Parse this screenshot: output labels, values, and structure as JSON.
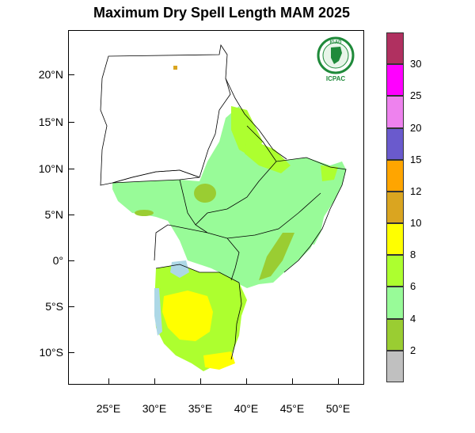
{
  "title": "Maximum Dry Spell Length MAM 2025",
  "logo": {
    "name": "IGAD",
    "caption": "ICPAC"
  },
  "lat_labels": [
    "20°N",
    "15°N",
    "10°N",
    "5°N",
    "0°",
    "5°S",
    "10°S"
  ],
  "lon_labels": [
    "25°E",
    "30°E",
    "35°E",
    "40°E",
    "45°E",
    "50°E"
  ],
  "legend": {
    "labels": [
      "2",
      "4",
      "6",
      "8",
      "10",
      "12",
      "15",
      "20",
      "25",
      "30"
    ],
    "colors": [
      "#c0c0c0",
      "#9acd32",
      "#98fb98",
      "#adff2f",
      "#ffff00",
      "#daa520",
      "#ffa500",
      "#6a5acd",
      "#ee82ee",
      "#ff00ff",
      "#b03060"
    ]
  }
}
